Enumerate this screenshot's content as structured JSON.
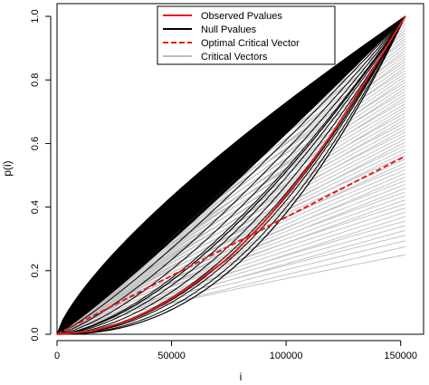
{
  "chart_data": {
    "type": "line",
    "title": "",
    "xlabel": "i",
    "ylabel": "p(i)",
    "xlim": [
      0,
      160000
    ],
    "ylim": [
      0,
      1.04
    ],
    "xticks": [
      0,
      50000,
      100000,
      150000
    ],
    "yticks": [
      0.0,
      0.2,
      0.4,
      0.6,
      0.8,
      1.0
    ],
    "xtick_labels": [
      "0",
      "50000",
      "100000",
      "150000"
    ],
    "ytick_labels": [
      "0.0",
      "0.2",
      "0.4",
      "0.6",
      "0.8",
      "1.0"
    ],
    "n": 152000,
    "grid": false,
    "legend_position": "top-center",
    "legend": [
      {
        "label": "Observed Pvalues",
        "color": "#e41a1c",
        "style": "solid"
      },
      {
        "label": "Null Pvalues",
        "color": "#000000",
        "style": "solid"
      },
      {
        "label": "Optimal Critical Vector",
        "color": "#e41a1c",
        "style": "dashed"
      },
      {
        "label": "Critical Vectors",
        "color": "#bdbdbd",
        "style": "solid"
      }
    ],
    "series": [
      {
        "name": "Observed Pvalues",
        "color": "#e41a1c",
        "x": [
          0,
          15000,
          30000,
          45000,
          60000,
          75000,
          90000,
          105000,
          120000,
          135000,
          152000
        ],
        "y": [
          0.0,
          0.01,
          0.04,
          0.09,
          0.16,
          0.24,
          0.35,
          0.48,
          0.63,
          0.8,
          1.0
        ]
      },
      {
        "name": "Optimal Critical Vector",
        "color": "#e41a1c",
        "x": [
          0,
          152000
        ],
        "y": [
          0.0,
          0.56
        ]
      },
      {
        "name": "Null Pvalues",
        "color": "#000000",
        "x": [
          0,
          152000
        ],
        "upper_envelope_power": 0.75,
        "lower_envelope_power": 2.3,
        "curve_count": 60
      },
      {
        "name": "Critical Vectors",
        "color": "#bdbdbd",
        "x": [
          0,
          152000
        ],
        "end_values_range": [
          0.25,
          1.0
        ],
        "curve_count": 70
      }
    ]
  }
}
